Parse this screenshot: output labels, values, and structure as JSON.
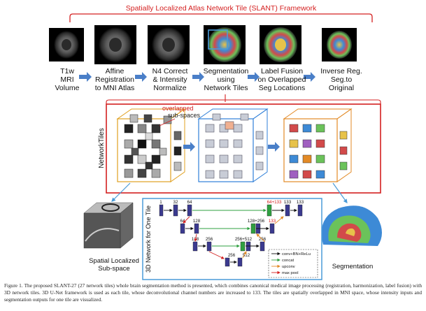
{
  "framework_title": "Spatially Localized Atlas Network Tile (SLANT) Framework",
  "pipeline": [
    {
      "l1": "T1w",
      "l2": "MRI",
      "l3": "Volume"
    },
    {
      "l1": "Affine",
      "l2": "Registration",
      "l3": "to MNI Atlas"
    },
    {
      "l1": "N4 Correct",
      "l2": "& Intensity",
      "l3": "Normalize"
    },
    {
      "l1": "Segmentation",
      "l2": "using",
      "l3": "Network Tiles"
    },
    {
      "l1": "Label Fusion",
      "l2": "on Overlapped",
      "l3": "Seg Locations"
    },
    {
      "l1": "Inverse Reg.",
      "l2": "Seg.to",
      "l3": "Original"
    }
  ],
  "network_tiles_label": "NetworkTiles",
  "overlap_label_1": "overlapped",
  "overlap_label_2": "sub-spaces",
  "network_label": "3D Network for One Tile",
  "channels": {
    "c1": "1",
    "c32": "32",
    "c64a": "64",
    "c64_133": "64+133",
    "c133a": "133",
    "c133b": "133",
    "c64b": "64",
    "c128a": "128",
    "c128_256": "128+256",
    "c133c": "133",
    "c128b": "128",
    "c256a": "256",
    "c256_512": "256+512",
    "c256b": "256",
    "c256c": "256",
    "c512": "512"
  },
  "legend": {
    "conv": "conv+BN+ReLu",
    "concat": "concat",
    "upconv": "upconv",
    "maxpool": "max pool"
  },
  "subspace_label_1": "Spatial Localized",
  "subspace_label_2": "Sub-space",
  "segmentation_label": "Segmentation",
  "caption": {
    "lead": "Figure 1. The proposed SLANT-27 (27 network tiles) whole brain segmentation method is presented, which combines canonical medical image processing (registration, harmonization, label fusion) with 3D network tiles. 3D U-Net framework is used as each tile, whose deconvolutional channel numbers are increased to 133. The tiles are spatially overlapped in MNI space, whose intensity inputs and segmentation outputs for one tile are visualized."
  },
  "colors": {
    "red_frame": "#d42020",
    "blue_frame": "#2f7fd8",
    "arrow_blue": "#4a7fc8",
    "box_purple": "#3b3a8f",
    "box_green": "#2fa040",
    "orange_frame": "#e38a26"
  }
}
